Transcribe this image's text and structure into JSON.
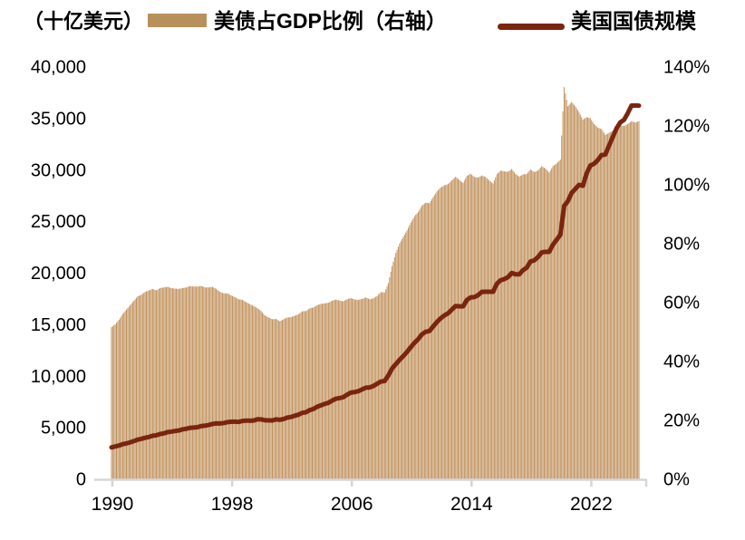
{
  "header": {
    "unit_label": "（十亿美元）",
    "legend": [
      {
        "label": "美债占GDP比例（右轴）",
        "swatch": "bar-swatch"
      },
      {
        "label": "美国国债规模",
        "swatch": "line-swatch"
      }
    ]
  },
  "colors": {
    "bar": "#C0915C",
    "bar_swatch": "#B8915A",
    "line": "#7A2510",
    "axis": "#D6D6D6",
    "text": "#000000"
  },
  "chart_data": {
    "type": "combo",
    "subtype": "monthly bars (ratio, right axis) + line (debt level, left axis)",
    "title": "",
    "x_axis": {
      "start": "1990-Q1",
      "end": "2025-Q2",
      "tick_labels": [
        "1990",
        "1998",
        "2006",
        "2014",
        "2022"
      ],
      "tick_years": [
        1990,
        1998,
        2006,
        2014,
        2022
      ]
    },
    "left_axis": {
      "label": "（十亿美元）",
      "min": 0,
      "max": 40000,
      "tick_labels": [
        "0",
        "5,000",
        "10,000",
        "15,000",
        "20,000",
        "25,000",
        "30,000",
        "35,000",
        "40,000"
      ]
    },
    "right_axis": {
      "label": "%",
      "min": 0,
      "max": 140,
      "tick_labels": [
        "0%",
        "20%",
        "40%",
        "60%",
        "80%",
        "100%",
        "120%",
        "140%"
      ]
    },
    "series": [
      {
        "name": "美债占GDP比例（右轴）",
        "type": "bar",
        "axis": "right",
        "unit": "%",
        "frequency": "quarterly",
        "values": [
          51.5,
          52.5,
          54.0,
          56.0,
          57.5,
          59.0,
          60.5,
          62.0,
          62.5,
          63.5,
          64.0,
          64.5,
          64.0,
          64.8,
          65.0,
          65.2,
          64.8,
          64.6,
          64.5,
          64.8,
          65.0,
          65.5,
          65.3,
          65.3,
          65.5,
          65.0,
          65.0,
          65.2,
          64.5,
          63.5,
          63.0,
          63.0,
          62.3,
          61.7,
          61.0,
          60.8,
          60.0,
          59.3,
          58.7,
          58.0,
          57.0,
          55.5,
          54.8,
          54.2,
          54.3,
          53.5,
          54.2,
          54.8,
          54.9,
          55.4,
          55.9,
          56.9,
          57.0,
          57.9,
          58.2,
          59.0,
          59.4,
          59.6,
          59.8,
          60.5,
          60.9,
          60.5,
          60.3,
          61.0,
          61.4,
          60.9,
          60.8,
          61.1,
          61.6,
          61.0,
          61.3,
          62.1,
          63.4,
          63.3,
          66.5,
          72.3,
          76.7,
          79.9,
          82.2,
          84.4,
          87.0,
          89.2,
          90.6,
          92.8,
          93.8,
          93.6,
          95.7,
          97.6,
          98.9,
          99.7,
          100.1,
          101.4,
          102.6,
          101.5,
          100.5,
          102.9,
          103.6,
          102.5,
          102.3,
          103.0,
          102.5,
          101.3,
          100.3,
          103.4,
          104.7,
          104.4,
          104.3,
          105.2,
          103.6,
          102.6,
          103.4,
          103.5,
          105.1,
          104.2,
          104.7,
          106.2,
          105.4,
          104.0,
          106.2,
          107.1,
          108.4,
          133.0,
          126.5,
          128.0,
          126.5,
          124.5,
          122.0,
          122.8,
          122.5,
          120.5,
          119.3,
          118.8,
          116.8,
          117.5,
          118.2,
          119.5,
          120.0,
          119.8,
          120.5,
          121.5,
          121.0,
          121.5
        ]
      },
      {
        "name": "美国国债规模",
        "type": "line",
        "axis": "left",
        "unit": "十亿美元",
        "frequency": "quarterly",
        "values": [
          3052,
          3143,
          3233,
          3365,
          3441,
          3538,
          3665,
          3802,
          3881,
          3985,
          4065,
          4177,
          4231,
          4352,
          4412,
          4536,
          4576,
          4646,
          4693,
          4800,
          4864,
          4951,
          4974,
          5017,
          5118,
          5161,
          5225,
          5323,
          5380,
          5376,
          5413,
          5502,
          5542,
          5548,
          5526,
          5614,
          5651,
          5639,
          5656,
          5776,
          5773,
          5686,
          5674,
          5662,
          5774,
          5727,
          5807,
          5943,
          6006,
          6126,
          6228,
          6406,
          6460,
          6670,
          6783,
          6998,
          7131,
          7274,
          7379,
          7596,
          7776,
          7836,
          7933,
          8170,
          8371,
          8420,
          8507,
          8680,
          8849,
          8868,
          9008,
          9229,
          9438,
          9492,
          10025,
          10700,
          11127,
          11545,
          11910,
          12311,
          12773,
          13202,
          13562,
          14025,
          14270,
          14343,
          14790,
          15223,
          15582,
          15856,
          16066,
          16433,
          16771,
          16738,
          16738,
          17352,
          17601,
          17633,
          17824,
          18141,
          18152,
          18152,
          18151,
          18922,
          19265,
          19382,
          19573,
          19977,
          19846,
          19845,
          20245,
          20493,
          21090,
          21195,
          21516,
          21974,
          22028,
          22023,
          22719,
          23201,
          23687,
          26477,
          26945,
          27748,
          28133,
          28529,
          28429,
          29617,
          30401,
          30569,
          30929,
          31420,
          31459,
          32332,
          33167,
          34001,
          34587,
          34832,
          35465,
          36219,
          36220,
          36214
        ]
      }
    ],
    "legend_position": "top"
  }
}
